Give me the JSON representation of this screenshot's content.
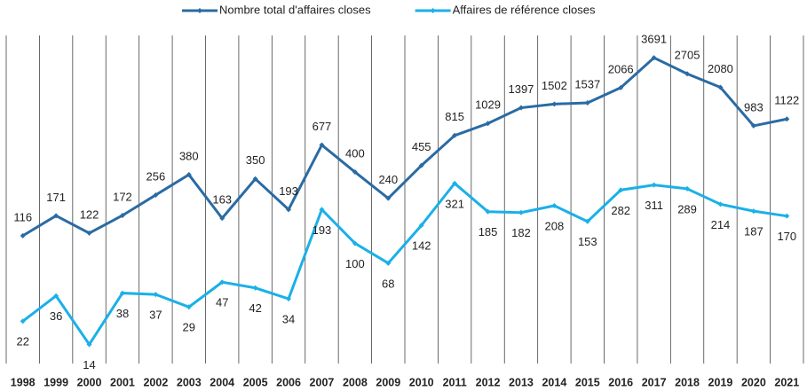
{
  "chart_data": {
    "type": "line",
    "categories": [
      "1998",
      "1999",
      "2000",
      "2001",
      "2002",
      "2003",
      "2004",
      "2005",
      "2006",
      "2007",
      "2008",
      "2009",
      "2010",
      "2011",
      "2012",
      "2013",
      "2014",
      "2015",
      "2016",
      "2017",
      "2018",
      "2019",
      "2020",
      "2021"
    ],
    "series": [
      {
        "name": "Nombre total d'affaires closes",
        "color": "#2a6ba3",
        "values": [
          116,
          171,
          122,
          172,
          256,
          380,
          163,
          350,
          193,
          677,
          400,
          240,
          455,
          815,
          1029,
          1397,
          1502,
          1537,
          2066,
          3691,
          2705,
          2080,
          983,
          1122
        ]
      },
      {
        "name": "Affaires de référence closes",
        "color": "#1ab0e8",
        "values": [
          22,
          36,
          14,
          38,
          37,
          29,
          47,
          42,
          34,
          193,
          100,
          68,
          142,
          321,
          185,
          182,
          208,
          153,
          282,
          311,
          289,
          214,
          187,
          170
        ]
      }
    ],
    "ylim": [
      10,
      6000
    ],
    "yscale": "log",
    "grid": "vertical",
    "legend": "top"
  }
}
